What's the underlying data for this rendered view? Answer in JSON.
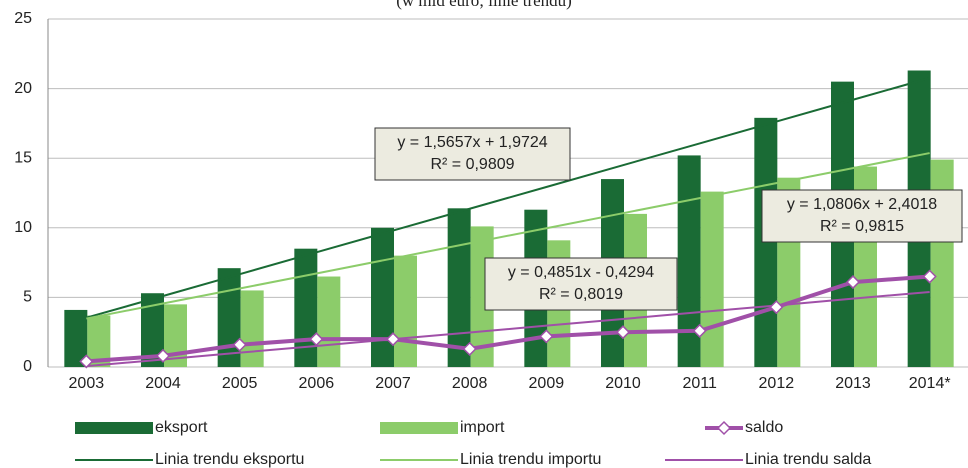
{
  "chart_data": {
    "type": "bar",
    "subtitle": "(w mld euro; linie trendu)",
    "categories": [
      "2003",
      "2004",
      "2005",
      "2006",
      "2007",
      "2008",
      "2009",
      "2010",
      "2011",
      "2012",
      "2013",
      "2014*"
    ],
    "ylim": [
      0,
      25
    ],
    "yticks": [
      0,
      5,
      10,
      15,
      20,
      25
    ],
    "grid": true,
    "series": [
      {
        "name": "eksport",
        "kind": "bar",
        "color": "#1a6b35",
        "values": [
          4.1,
          5.3,
          7.1,
          8.5,
          10.0,
          11.4,
          11.3,
          13.5,
          15.2,
          17.9,
          20.5,
          21.3
        ]
      },
      {
        "name": "import",
        "kind": "bar",
        "color": "#8ccc6a",
        "values": [
          3.7,
          4.5,
          5.5,
          6.5,
          8.0,
          10.1,
          9.1,
          11.0,
          12.6,
          13.6,
          14.4,
          14.9
        ]
      },
      {
        "name": "saldo",
        "kind": "line",
        "marker": "diamond",
        "color": "#a050a8",
        "values": [
          0.4,
          0.8,
          1.6,
          2.0,
          2.0,
          1.3,
          2.2,
          2.5,
          2.6,
          4.3,
          6.1,
          6.5
        ]
      },
      {
        "name": "Linia trendu eksportu",
        "kind": "trend",
        "color": "#1a6b35",
        "values": [
          3.54,
          5.1,
          6.67,
          8.24,
          9.8,
          11.37,
          12.93,
          14.5,
          16.06,
          17.63,
          19.2,
          20.76
        ]
      },
      {
        "name": "Linia trendu importu",
        "kind": "trend",
        "color": "#8ccc6a",
        "values": [
          3.48,
          4.56,
          5.64,
          6.72,
          7.8,
          8.89,
          9.97,
          11.05,
          12.13,
          13.21,
          14.29,
          15.37
        ]
      },
      {
        "name": "Linia trendu salda",
        "kind": "trend",
        "color": "#a050a8",
        "values": [
          0.06,
          0.54,
          1.03,
          1.51,
          2.0,
          2.48,
          2.97,
          3.45,
          3.94,
          4.42,
          4.91,
          5.39
        ]
      }
    ],
    "annotations": [
      {
        "equation": "y = 1,5657x + 1,9724",
        "r2": "R² = 0,9809"
      },
      {
        "equation": "y = 1,0806x + 2,4018",
        "r2": "R² = 0,9815"
      },
      {
        "equation": "y = 0,4851x - 0,4294",
        "r2": "R² = 0,8019"
      }
    ]
  }
}
